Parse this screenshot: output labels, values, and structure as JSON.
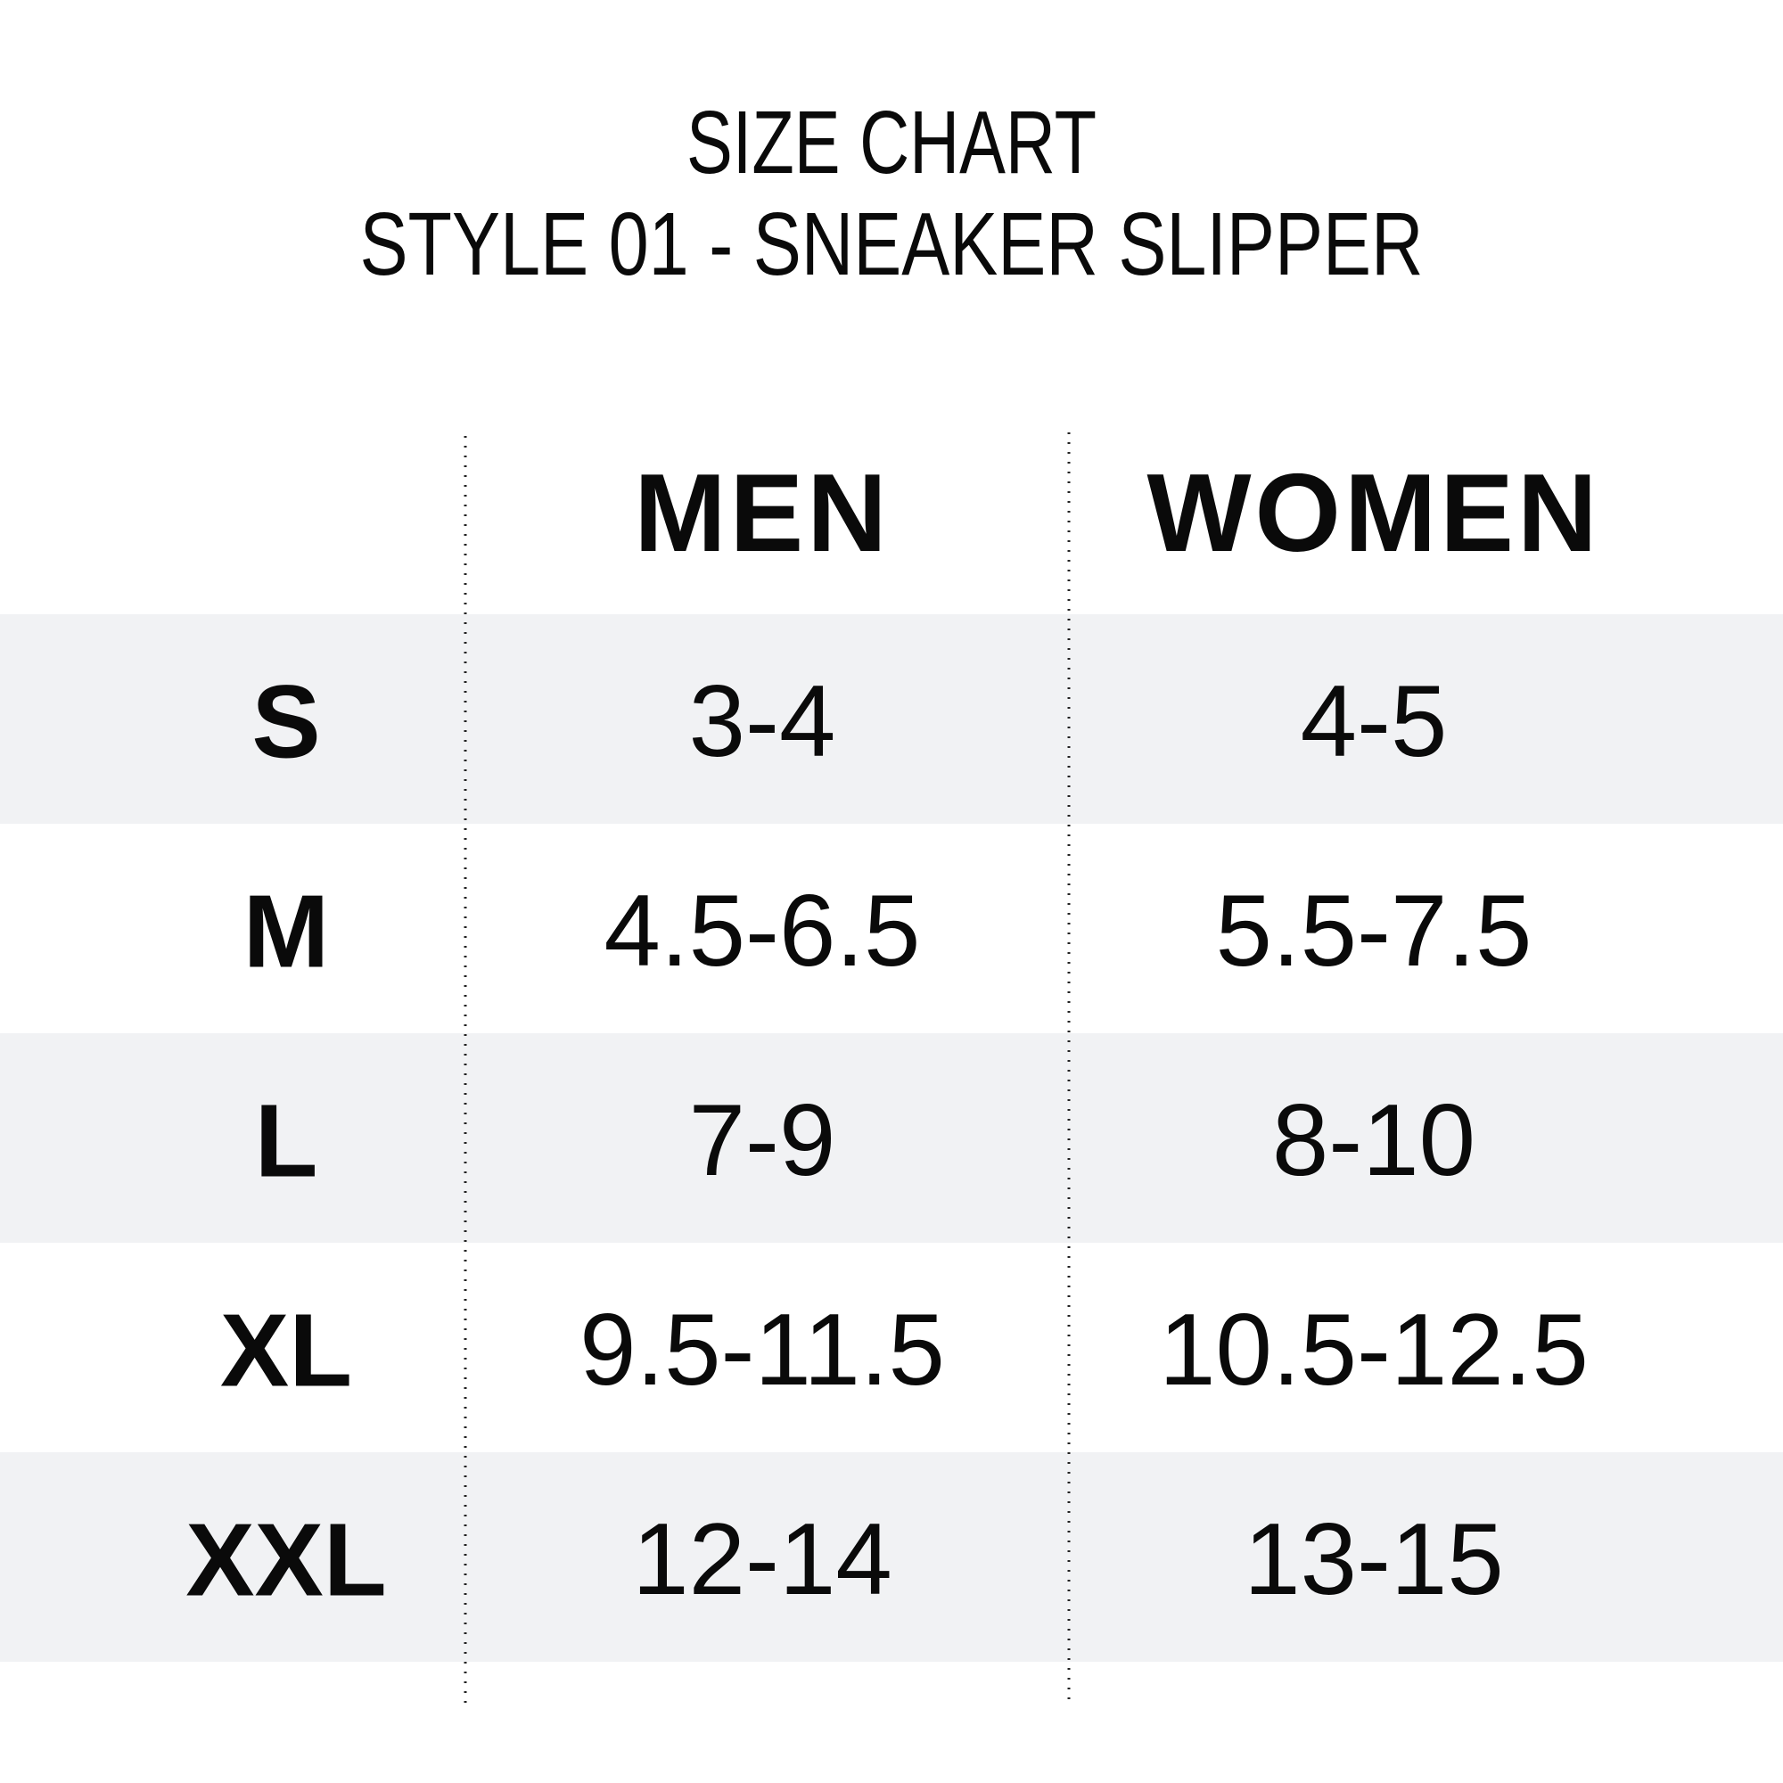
{
  "header": {
    "title": "SIZE CHART",
    "subtitle": "STYLE 01 - SNEAKER SLIPPER"
  },
  "table": {
    "columns": [
      "MEN",
      "WOMEN"
    ],
    "rows": [
      [
        "S",
        "3-4",
        "4-5"
      ],
      [
        "M",
        "4.5-6.5",
        "5.5-7.5"
      ],
      [
        "L",
        "7-9",
        "8-10"
      ],
      [
        "XL",
        "9.5-11.5",
        "10.5-12.5"
      ],
      [
        "XXL",
        "12-14",
        "13-15"
      ]
    ]
  }
}
